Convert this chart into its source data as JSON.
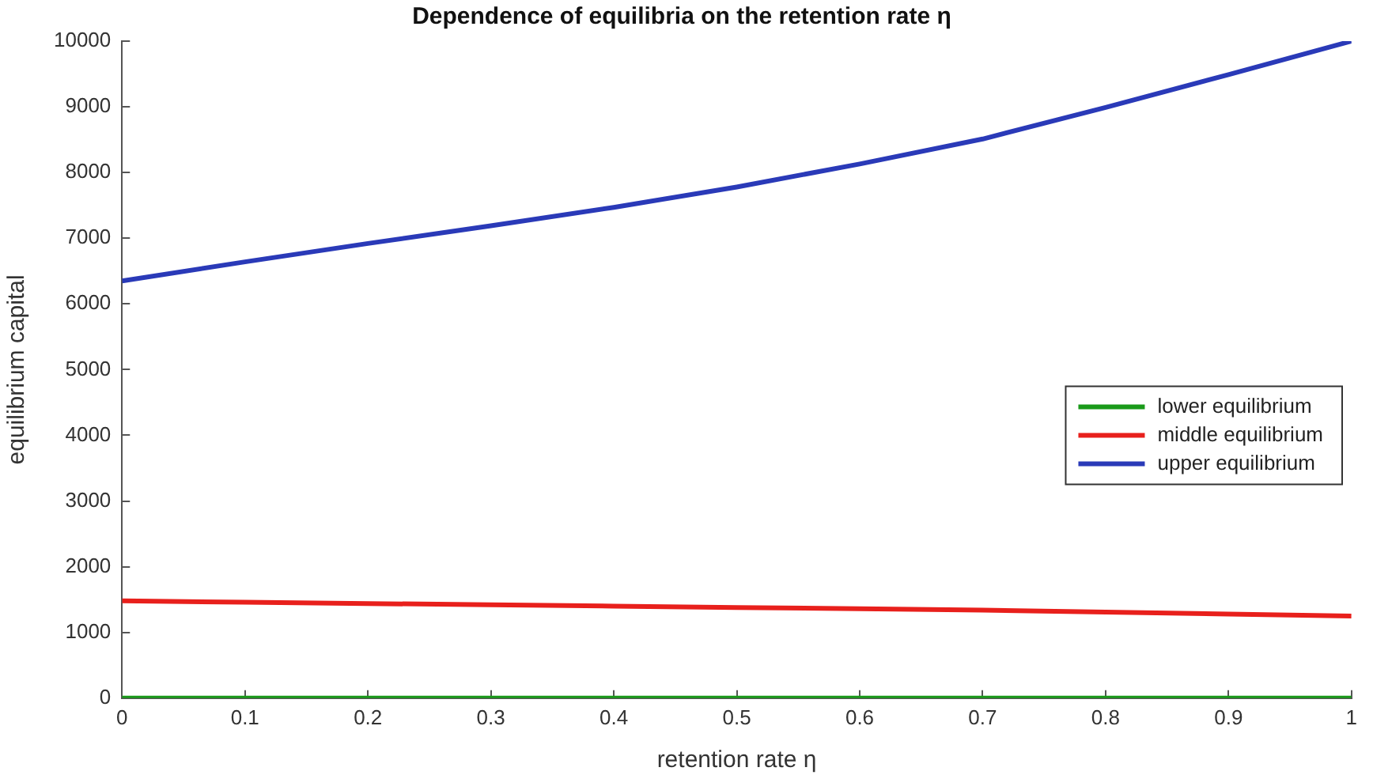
{
  "chart_data": {
    "type": "line",
    "title": "Dependence of equilibria on the retention rate η",
    "xlabel": "retention rate η",
    "ylabel": "equilibrium capital",
    "x": [
      0,
      0.1,
      0.2,
      0.3,
      0.4,
      0.5,
      0.6,
      0.7,
      0.8,
      0.9,
      1
    ],
    "series": [
      {
        "name": "lower equilibrium",
        "color": "#1a9a1a",
        "values": [
          0,
          0,
          0,
          0,
          0,
          0,
          0,
          0,
          0,
          0,
          0
        ]
      },
      {
        "name": "middle equilibrium",
        "color": "#e8201c",
        "values": [
          1480,
          1460,
          1440,
          1420,
          1400,
          1380,
          1360,
          1340,
          1310,
          1280,
          1250
        ]
      },
      {
        "name": "upper equilibrium",
        "color": "#2a3ab8",
        "values": [
          6350,
          6640,
          6920,
          7190,
          7470,
          7780,
          8130,
          8510,
          8990,
          9490,
          10000
        ]
      }
    ],
    "xlim": [
      0,
      1
    ],
    "xticks": [
      0,
      0.1,
      0.2,
      0.3,
      0.4,
      0.5,
      0.6,
      0.7,
      0.8,
      0.9,
      1
    ],
    "ylim": [
      0,
      10000
    ],
    "yticks": [
      0,
      1000,
      2000,
      3000,
      4000,
      5000,
      6000,
      7000,
      8000,
      9000,
      10000
    ],
    "grid": false,
    "legend": "right",
    "marker": "none",
    "line_style": "solid"
  }
}
